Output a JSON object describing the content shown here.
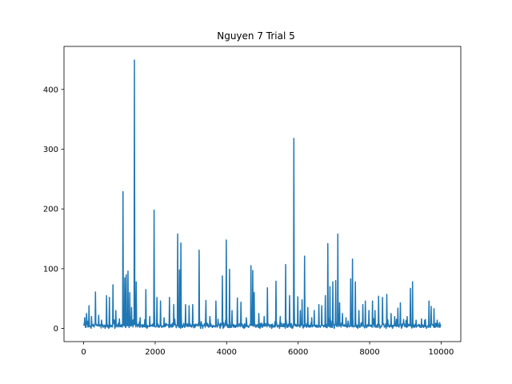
{
  "chart_data": {
    "type": "line",
    "title": "Nguyen 7 Trial 5",
    "xlabel": "",
    "ylabel": "",
    "xlim": [
      -550,
      10550
    ],
    "ylim": [
      -22,
      472
    ],
    "xticks": [
      0,
      2000,
      4000,
      6000,
      8000,
      10000
    ],
    "yticks": [
      0,
      100,
      200,
      300,
      400
    ],
    "grid": false,
    "color": "#1f77b4",
    "series": [
      {
        "x_range": [
          0,
          10000
        ],
        "baseline": 4,
        "noise_amplitude": 10,
        "peaks": [
          {
            "x": 30,
            "y": 18
          },
          {
            "x": 80,
            "y": 25
          },
          {
            "x": 150,
            "y": 38
          },
          {
            "x": 220,
            "y": 20
          },
          {
            "x": 330,
            "y": 61
          },
          {
            "x": 420,
            "y": 22
          },
          {
            "x": 500,
            "y": 14
          },
          {
            "x": 640,
            "y": 55
          },
          {
            "x": 720,
            "y": 52
          },
          {
            "x": 820,
            "y": 73
          },
          {
            "x": 900,
            "y": 30
          },
          {
            "x": 1000,
            "y": 16
          },
          {
            "x": 1100,
            "y": 229
          },
          {
            "x": 1150,
            "y": 85
          },
          {
            "x": 1190,
            "y": 90
          },
          {
            "x": 1240,
            "y": 96
          },
          {
            "x": 1290,
            "y": 60
          },
          {
            "x": 1340,
            "y": 35
          },
          {
            "x": 1420,
            "y": 449
          },
          {
            "x": 1470,
            "y": 78
          },
          {
            "x": 1580,
            "y": 18
          },
          {
            "x": 1740,
            "y": 65
          },
          {
            "x": 1850,
            "y": 20
          },
          {
            "x": 1970,
            "y": 198
          },
          {
            "x": 2050,
            "y": 52
          },
          {
            "x": 2150,
            "y": 46
          },
          {
            "x": 2250,
            "y": 18
          },
          {
            "x": 2400,
            "y": 52
          },
          {
            "x": 2520,
            "y": 40
          },
          {
            "x": 2630,
            "y": 158
          },
          {
            "x": 2680,
            "y": 98
          },
          {
            "x": 2720,
            "y": 143
          },
          {
            "x": 2850,
            "y": 40
          },
          {
            "x": 2950,
            "y": 38
          },
          {
            "x": 3050,
            "y": 40
          },
          {
            "x": 3230,
            "y": 131
          },
          {
            "x": 3420,
            "y": 47
          },
          {
            "x": 3530,
            "y": 20
          },
          {
            "x": 3700,
            "y": 46
          },
          {
            "x": 3880,
            "y": 88
          },
          {
            "x": 3990,
            "y": 148
          },
          {
            "x": 4080,
            "y": 99
          },
          {
            "x": 4150,
            "y": 30
          },
          {
            "x": 4300,
            "y": 51
          },
          {
            "x": 4400,
            "y": 44
          },
          {
            "x": 4550,
            "y": 18
          },
          {
            "x": 4680,
            "y": 105
          },
          {
            "x": 4730,
            "y": 97
          },
          {
            "x": 4770,
            "y": 60
          },
          {
            "x": 4900,
            "y": 25
          },
          {
            "x": 5050,
            "y": 20
          },
          {
            "x": 5140,
            "y": 68
          },
          {
            "x": 5380,
            "y": 79
          },
          {
            "x": 5500,
            "y": 20
          },
          {
            "x": 5650,
            "y": 107
          },
          {
            "x": 5760,
            "y": 55
          },
          {
            "x": 5880,
            "y": 318
          },
          {
            "x": 5990,
            "y": 53
          },
          {
            "x": 6060,
            "y": 30
          },
          {
            "x": 6110,
            "y": 48
          },
          {
            "x": 6180,
            "y": 121
          },
          {
            "x": 6270,
            "y": 35
          },
          {
            "x": 6380,
            "y": 18
          },
          {
            "x": 6450,
            "y": 30
          },
          {
            "x": 6580,
            "y": 40
          },
          {
            "x": 6660,
            "y": 38
          },
          {
            "x": 6760,
            "y": 55
          },
          {
            "x": 6830,
            "y": 142
          },
          {
            "x": 6890,
            "y": 70
          },
          {
            "x": 6970,
            "y": 78
          },
          {
            "x": 7050,
            "y": 80
          },
          {
            "x": 7110,
            "y": 158
          },
          {
            "x": 7160,
            "y": 43
          },
          {
            "x": 7240,
            "y": 25
          },
          {
            "x": 7340,
            "y": 18
          },
          {
            "x": 7470,
            "y": 83
          },
          {
            "x": 7520,
            "y": 116
          },
          {
            "x": 7600,
            "y": 78
          },
          {
            "x": 7700,
            "y": 30
          },
          {
            "x": 7810,
            "y": 40
          },
          {
            "x": 7880,
            "y": 46
          },
          {
            "x": 7980,
            "y": 30
          },
          {
            "x": 8080,
            "y": 46
          },
          {
            "x": 8150,
            "y": 30
          },
          {
            "x": 8250,
            "y": 54
          },
          {
            "x": 8360,
            "y": 52
          },
          {
            "x": 8480,
            "y": 57
          },
          {
            "x": 8600,
            "y": 25
          },
          {
            "x": 8700,
            "y": 20
          },
          {
            "x": 8790,
            "y": 34
          },
          {
            "x": 8860,
            "y": 43
          },
          {
            "x": 8950,
            "y": 15
          },
          {
            "x": 9050,
            "y": 20
          },
          {
            "x": 9140,
            "y": 67
          },
          {
            "x": 9200,
            "y": 78
          },
          {
            "x": 9300,
            "y": 14
          },
          {
            "x": 9450,
            "y": 16
          },
          {
            "x": 9560,
            "y": 15
          },
          {
            "x": 9660,
            "y": 46
          },
          {
            "x": 9720,
            "y": 37
          },
          {
            "x": 9800,
            "y": 33
          },
          {
            "x": 9890,
            "y": 14
          },
          {
            "x": 9960,
            "y": 10
          }
        ]
      }
    ]
  }
}
